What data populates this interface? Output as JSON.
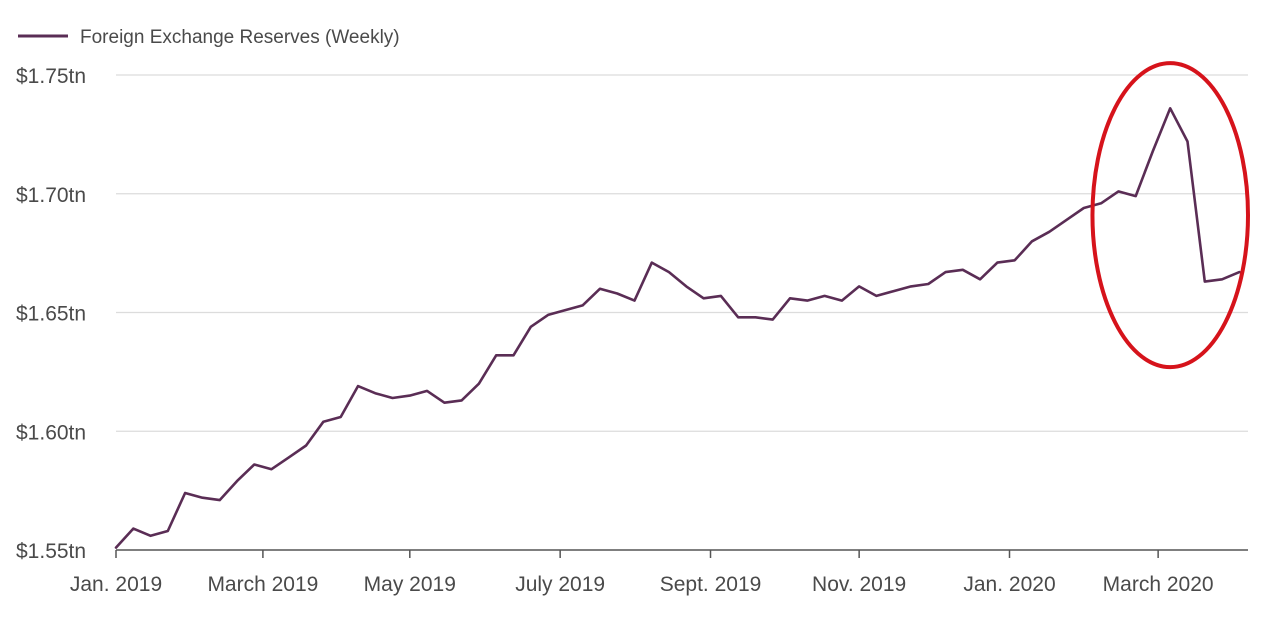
{
  "chart_data": {
    "type": "line",
    "legend_position": "top-left",
    "grid": true,
    "y_ticks": [
      {
        "value": 1.75,
        "label": "$1.75tn"
      },
      {
        "value": 1.7,
        "label": "$1.70tn"
      },
      {
        "value": 1.65,
        "label": "$1.65tn"
      },
      {
        "value": 1.6,
        "label": "$1.60tn"
      },
      {
        "value": 1.55,
        "label": "$1.55tn"
      }
    ],
    "ylim": [
      1.55,
      1.75
    ],
    "x_ticks": [
      {
        "week": 0,
        "label": "Jan. 2019"
      },
      {
        "week": 8.5,
        "label": "March 2019"
      },
      {
        "week": 17,
        "label": "May 2019"
      },
      {
        "week": 25.7,
        "label": "July 2019"
      },
      {
        "week": 34.4,
        "label": "Sept. 2019"
      },
      {
        "week": 43,
        "label": "Nov. 2019"
      },
      {
        "week": 51.7,
        "label": "Jan. 2020"
      },
      {
        "week": 60.3,
        "label": "March 2020"
      }
    ],
    "xlim": [
      0,
      65.5
    ],
    "colors": {
      "line": "#5a2d55",
      "grid": "#dcdcdc",
      "axis": "#555555",
      "highlight": "#d6131b"
    },
    "highlight": {
      "shape": "ellipse",
      "week_range": [
        56.5,
        65.5
      ],
      "value_range": [
        1.627,
        1.755
      ]
    },
    "series": [
      {
        "name": "Foreign Exchange Reserves (Weekly)",
        "x": [
          0,
          1,
          2,
          3,
          4,
          5,
          6,
          7,
          8,
          9,
          10,
          11,
          12,
          13,
          14,
          15,
          16,
          17,
          18,
          19,
          20,
          21,
          22,
          23,
          24,
          25,
          26,
          27,
          28,
          29,
          30,
          31,
          32,
          33,
          34,
          35,
          36,
          37,
          38,
          39,
          40,
          41,
          42,
          43,
          44,
          45,
          46,
          47,
          48,
          49,
          50,
          51,
          52,
          53,
          54,
          55,
          56,
          57,
          58,
          59,
          60,
          61,
          62,
          63,
          64,
          65
        ],
        "values": [
          1.551,
          1.559,
          1.556,
          1.558,
          1.574,
          1.572,
          1.571,
          1.579,
          1.586,
          1.584,
          1.589,
          1.594,
          1.604,
          1.606,
          1.619,
          1.616,
          1.614,
          1.615,
          1.617,
          1.612,
          1.613,
          1.62,
          1.632,
          1.632,
          1.644,
          1.649,
          1.651,
          1.653,
          1.66,
          1.658,
          1.655,
          1.671,
          1.667,
          1.661,
          1.656,
          1.657,
          1.648,
          1.648,
          1.647,
          1.656,
          1.655,
          1.657,
          1.655,
          1.661,
          1.657,
          1.659,
          1.661,
          1.662,
          1.667,
          1.668,
          1.664,
          1.671,
          1.672,
          1.68,
          1.684,
          1.689,
          1.694,
          1.696,
          1.701,
          1.699,
          1.718,
          1.736,
          1.722,
          1.663,
          1.664,
          1.667
        ]
      }
    ]
  }
}
